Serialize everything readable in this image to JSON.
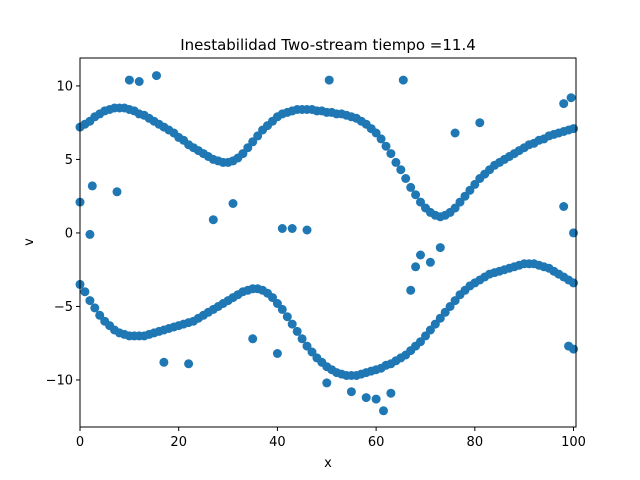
{
  "chart_data": {
    "type": "scatter",
    "title": "Inestabilidad Two-stream  tiempo =11.4",
    "xlabel": "x",
    "ylabel": "v",
    "xlim": [
      0,
      100.5
    ],
    "ylim": [
      -13.2,
      11.9
    ],
    "xticks": [
      0,
      20,
      40,
      60,
      80,
      100
    ],
    "yticks": [
      -10,
      -5,
      0,
      5,
      10
    ],
    "grid": false,
    "marker_color": "#1f77b4",
    "series": [
      {
        "points": [
          [
            0,
            7.2
          ],
          [
            1,
            7.4
          ],
          [
            2,
            7.6
          ],
          [
            3,
            7.9
          ],
          [
            4,
            8.1
          ],
          [
            5,
            8.3
          ],
          [
            6,
            8.4
          ],
          [
            7,
            8.5
          ],
          [
            8,
            8.5
          ],
          [
            9,
            8.5
          ],
          [
            10,
            8.4
          ],
          [
            11,
            8.3
          ],
          [
            12,
            8.1
          ],
          [
            13,
            8.0
          ],
          [
            14,
            7.8
          ],
          [
            15,
            7.6
          ],
          [
            16,
            7.4
          ],
          [
            17,
            7.2
          ],
          [
            18,
            7.0
          ],
          [
            19,
            6.8
          ],
          [
            20,
            6.5
          ],
          [
            21,
            6.3
          ],
          [
            22,
            6.0
          ],
          [
            23,
            5.8
          ],
          [
            24,
            5.6
          ],
          [
            25,
            5.4
          ],
          [
            26,
            5.2
          ],
          [
            27,
            5.0
          ],
          [
            28,
            4.9
          ],
          [
            29,
            4.8
          ],
          [
            30,
            4.8
          ],
          [
            31,
            4.9
          ],
          [
            32,
            5.1
          ],
          [
            33,
            5.4
          ],
          [
            34,
            5.8
          ],
          [
            35,
            6.2
          ],
          [
            36,
            6.6
          ],
          [
            37,
            7.0
          ],
          [
            38,
            7.3
          ],
          [
            39,
            7.6
          ],
          [
            40,
            7.9
          ],
          [
            41,
            8.1
          ],
          [
            42,
            8.2
          ],
          [
            43,
            8.3
          ],
          [
            44,
            8.4
          ],
          [
            45,
            8.4
          ],
          [
            46,
            8.4
          ],
          [
            47,
            8.4
          ],
          [
            48,
            8.3
          ],
          [
            49,
            8.3
          ],
          [
            50,
            8.2
          ],
          [
            51,
            8.2
          ],
          [
            52,
            8.1
          ],
          [
            53,
            8.1
          ],
          [
            54,
            8.0
          ],
          [
            55,
            7.9
          ],
          [
            56,
            7.8
          ],
          [
            57,
            7.6
          ],
          [
            58,
            7.4
          ],
          [
            59,
            7.1
          ],
          [
            60,
            6.8
          ],
          [
            61,
            6.4
          ],
          [
            62,
            5.9
          ],
          [
            63,
            5.4
          ],
          [
            64,
            4.8
          ],
          [
            65,
            4.3
          ],
          [
            66,
            3.7
          ],
          [
            67,
            3.1
          ],
          [
            68,
            2.6
          ],
          [
            69,
            2.1
          ],
          [
            70,
            1.7
          ],
          [
            71,
            1.4
          ],
          [
            72,
            1.2
          ],
          [
            73,
            1.1
          ],
          [
            74,
            1.2
          ],
          [
            75,
            1.4
          ],
          [
            76,
            1.7
          ],
          [
            77,
            2.1
          ],
          [
            78,
            2.5
          ],
          [
            79,
            2.9
          ],
          [
            80,
            3.3
          ],
          [
            81,
            3.7
          ],
          [
            82,
            4.0
          ],
          [
            83,
            4.3
          ],
          [
            84,
            4.6
          ],
          [
            85,
            4.8
          ],
          [
            86,
            5.0
          ],
          [
            87,
            5.2
          ],
          [
            88,
            5.4
          ],
          [
            89,
            5.6
          ],
          [
            90,
            5.8
          ],
          [
            91,
            6.0
          ],
          [
            92,
            6.1
          ],
          [
            93,
            6.3
          ],
          [
            94,
            6.4
          ],
          [
            95,
            6.6
          ],
          [
            96,
            6.7
          ],
          [
            97,
            6.8
          ],
          [
            98,
            6.9
          ],
          [
            99,
            7.0
          ],
          [
            100,
            7.1
          ],
          [
            0,
            -3.5
          ],
          [
            1,
            -4.0
          ],
          [
            2,
            -4.6
          ],
          [
            3,
            -5.1
          ],
          [
            4,
            -5.6
          ],
          [
            5,
            -6.0
          ],
          [
            6,
            -6.3
          ],
          [
            7,
            -6.6
          ],
          [
            8,
            -6.8
          ],
          [
            9,
            -6.9
          ],
          [
            10,
            -7.0
          ],
          [
            11,
            -7.0
          ],
          [
            12,
            -7.0
          ],
          [
            13,
            -7.0
          ],
          [
            14,
            -6.9
          ],
          [
            15,
            -6.8
          ],
          [
            16,
            -6.7
          ],
          [
            17,
            -6.6
          ],
          [
            18,
            -6.5
          ],
          [
            19,
            -6.4
          ],
          [
            20,
            -6.3
          ],
          [
            21,
            -6.2
          ],
          [
            22,
            -6.1
          ],
          [
            23,
            -6.0
          ],
          [
            24,
            -5.8
          ],
          [
            25,
            -5.6
          ],
          [
            26,
            -5.4
          ],
          [
            27,
            -5.2
          ],
          [
            28,
            -5.0
          ],
          [
            29,
            -4.8
          ],
          [
            30,
            -4.6
          ],
          [
            31,
            -4.4
          ],
          [
            32,
            -4.2
          ],
          [
            33,
            -4.0
          ],
          [
            34,
            -3.9
          ],
          [
            35,
            -3.8
          ],
          [
            36,
            -3.8
          ],
          [
            37,
            -3.9
          ],
          [
            38,
            -4.1
          ],
          [
            39,
            -4.4
          ],
          [
            40,
            -4.8
          ],
          [
            41,
            -5.2
          ],
          [
            42,
            -5.7
          ],
          [
            43,
            -6.2
          ],
          [
            44,
            -6.7
          ],
          [
            45,
            -7.2
          ],
          [
            46,
            -7.7
          ],
          [
            47,
            -8.1
          ],
          [
            48,
            -8.5
          ],
          [
            49,
            -8.8
          ],
          [
            50,
            -9.1
          ],
          [
            51,
            -9.3
          ],
          [
            52,
            -9.5
          ],
          [
            53,
            -9.6
          ],
          [
            54,
            -9.7
          ],
          [
            55,
            -9.7
          ],
          [
            56,
            -9.7
          ],
          [
            57,
            -9.6
          ],
          [
            58,
            -9.5
          ],
          [
            59,
            -9.4
          ],
          [
            60,
            -9.3
          ],
          [
            61,
            -9.2
          ],
          [
            62,
            -9.0
          ],
          [
            63,
            -8.9
          ],
          [
            64,
            -8.7
          ],
          [
            65,
            -8.5
          ],
          [
            66,
            -8.3
          ],
          [
            67,
            -8.0
          ],
          [
            68,
            -7.7
          ],
          [
            69,
            -7.4
          ],
          [
            70,
            -7.0
          ],
          [
            71,
            -6.6
          ],
          [
            72,
            -6.2
          ],
          [
            73,
            -5.8
          ],
          [
            74,
            -5.4
          ],
          [
            75,
            -5.0
          ],
          [
            76,
            -4.6
          ],
          [
            77,
            -4.2
          ],
          [
            78,
            -3.9
          ],
          [
            79,
            -3.6
          ],
          [
            80,
            -3.4
          ],
          [
            81,
            -3.2
          ],
          [
            82,
            -3.0
          ],
          [
            83,
            -2.8
          ],
          [
            84,
            -2.7
          ],
          [
            85,
            -2.6
          ],
          [
            86,
            -2.5
          ],
          [
            87,
            -2.4
          ],
          [
            88,
            -2.3
          ],
          [
            89,
            -2.2
          ],
          [
            90,
            -2.1
          ],
          [
            91,
            -2.1
          ],
          [
            92,
            -2.1
          ],
          [
            93,
            -2.2
          ],
          [
            94,
            -2.3
          ],
          [
            95,
            -2.4
          ],
          [
            96,
            -2.6
          ],
          [
            97,
            -2.8
          ],
          [
            98,
            -3.0
          ],
          [
            99,
            -3.2
          ],
          [
            100,
            -3.4
          ],
          [
            2.5,
            3.2
          ],
          [
            7.5,
            2.8
          ],
          [
            27,
            0.9
          ],
          [
            31,
            2.0
          ],
          [
            43,
            0.3
          ],
          [
            46,
            0.2
          ],
          [
            41,
            0.3
          ],
          [
            2,
            -0.1
          ],
          [
            0,
            2.1
          ],
          [
            65.5,
            10.4
          ],
          [
            50.5,
            10.4
          ],
          [
            15.5,
            10.7
          ],
          [
            12,
            10.3
          ],
          [
            10,
            10.4
          ],
          [
            99.5,
            9.2
          ],
          [
            98,
            8.8
          ],
          [
            81,
            7.5
          ],
          [
            76,
            6.8
          ],
          [
            68,
            -2.3
          ],
          [
            67,
            -3.9
          ],
          [
            69,
            -1.5
          ],
          [
            61.5,
            -12.1
          ],
          [
            60,
            -11.3
          ],
          [
            58,
            -11.2
          ],
          [
            17,
            -8.8
          ],
          [
            22,
            -8.9
          ],
          [
            35,
            -7.2
          ],
          [
            40,
            -8.2
          ],
          [
            100,
            -7.9
          ],
          [
            99,
            -7.7
          ],
          [
            100,
            0
          ],
          [
            98,
            1.8
          ],
          [
            71,
            -2.0
          ],
          [
            73,
            -1.0
          ],
          [
            63,
            -10.9
          ],
          [
            55,
            -10.8
          ],
          [
            50,
            -10.2
          ]
        ]
      }
    ]
  }
}
